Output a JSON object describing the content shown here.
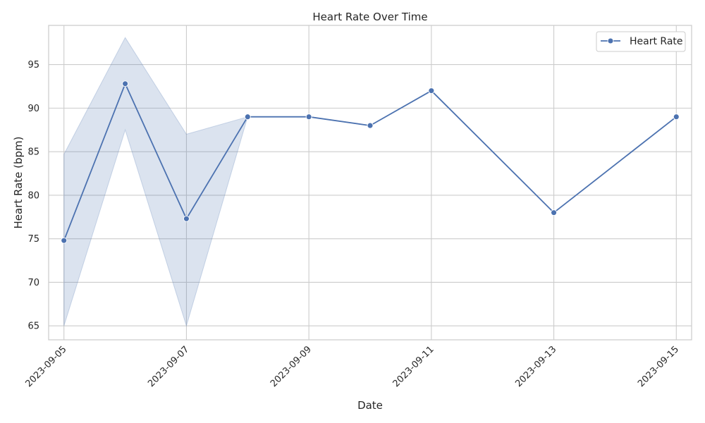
{
  "chart_data": {
    "type": "line",
    "title": "Heart Rate Over Time",
    "xlabel": "Date",
    "ylabel": "Heart Rate (bpm)",
    "x_ticks": [
      "2023-09-05",
      "2023-09-07",
      "2023-09-09",
      "2023-09-11",
      "2023-09-13",
      "2023-09-15"
    ],
    "y_ticks": [
      65,
      70,
      75,
      80,
      85,
      90,
      95
    ],
    "xlim": [
      "2023-09-04T18:00",
      "2023-09-15T06:00"
    ],
    "ylim": [
      63.4,
      99.5
    ],
    "grid": true,
    "legend_position": "top-right",
    "series": [
      {
        "name": "Heart Rate",
        "color": "#4c72b0",
        "x": [
          "2023-09-05",
          "2023-09-06",
          "2023-09-07",
          "2023-09-08",
          "2023-09-09",
          "2023-09-10",
          "2023-09-11",
          "2023-09-13",
          "2023-09-15"
        ],
        "y": [
          74.8,
          92.8,
          77.3,
          89.0,
          89.0,
          88.0,
          92.0,
          78.0,
          89.0
        ],
        "ci_lower": [
          65.0,
          87.5,
          65.0,
          89.0,
          null,
          null,
          null,
          null,
          null
        ],
        "ci_upper": [
          84.7,
          98.1,
          87.0,
          89.0,
          null,
          null,
          null,
          null,
          null
        ]
      }
    ]
  }
}
